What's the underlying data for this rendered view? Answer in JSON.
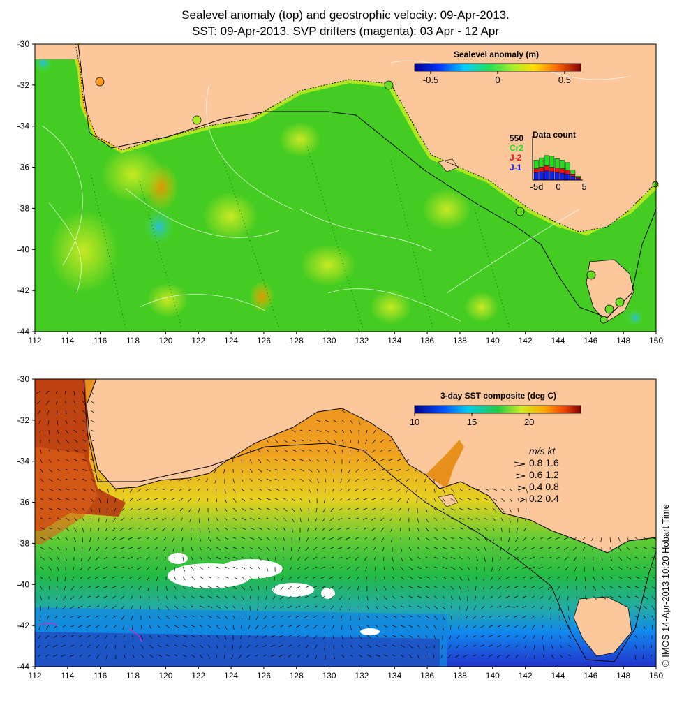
{
  "title": {
    "line1": "Sealevel anomaly (top) and geostrophic velocity: 09-Apr-2013.",
    "line2": "SST: 09-Apr-2013. SVP drifters (magenta): 03 Apr - 12 Apr"
  },
  "axes": {
    "x_ticks": [
      "112",
      "114",
      "116",
      "118",
      "120",
      "122",
      "124",
      "126",
      "128",
      "130",
      "132",
      "134",
      "136",
      "138",
      "140",
      "142",
      "144",
      "146",
      "148",
      "150"
    ],
    "y_ticks": [
      "-30",
      "-32",
      "-34",
      "-36",
      "-38",
      "-40",
      "-42",
      "-44"
    ],
    "lon_range": [
      112,
      150
    ],
    "lat_range": [
      -30,
      -44
    ]
  },
  "top_panel": {
    "colorbar_title": "Sealevel anomaly (m)",
    "colorbar_ticks": [
      "-0.5",
      "0",
      "0.5"
    ],
    "colorbar_range": [
      -0.62,
      0.62
    ],
    "data_count": {
      "title": "Data count",
      "max_label": "550",
      "series": [
        {
          "name": "Cr2",
          "color": "#22dd22"
        },
        {
          "name": "J-2",
          "color": "#ee1111"
        },
        {
          "name": "J-1",
          "color": "#1122ee"
        }
      ],
      "x_ticks": [
        "-5d",
        "0",
        "5"
      ]
    }
  },
  "bottom_panel": {
    "colorbar_title": "3-day SST composite (deg C)",
    "colorbar_ticks": [
      "10",
      "15",
      "20"
    ],
    "colorbar_range": [
      10,
      24.5
    ],
    "legend_header": "m/s  kt",
    "legend_rows": [
      "0.8  1.6",
      "0.6  1.2",
      "0.4  0.8",
      "0.2  0.4"
    ],
    "legend_speeds": [
      0.8,
      0.6,
      0.4,
      0.2
    ]
  },
  "credit": "© IMOS 14-Apr-2013 10:20 Hobart Time",
  "colors": {
    "land": "#fcc89b",
    "ocean_sla": "#44cc22",
    "sst_warm": "#e8901c",
    "sst_cool": "#2288ee"
  }
}
